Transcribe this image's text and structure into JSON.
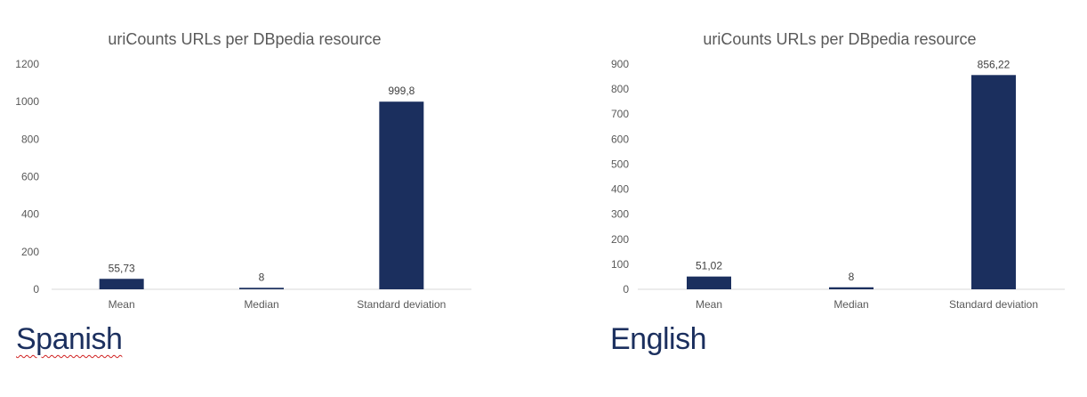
{
  "colors": {
    "bar": "#1b2f5e",
    "axis": "#d9d9d9",
    "text": "#595959"
  },
  "labels": {
    "left": "Spanish",
    "right": "English"
  },
  "chart_data": [
    {
      "type": "bar",
      "title": "uriCounts URLs per DBpedia resource",
      "categories": [
        "Mean",
        "Median",
        "Standard deviation"
      ],
      "values": [
        55.73,
        8,
        999.8
      ],
      "value_labels": [
        "55,73",
        "8",
        "999,8"
      ],
      "ylim": [
        0,
        1200
      ],
      "yticks": [
        0,
        200,
        400,
        600,
        800,
        1000,
        1200
      ],
      "grid": false,
      "legend": "none"
    },
    {
      "type": "bar",
      "title": "uriCounts URLs per DBpedia resource",
      "categories": [
        "Mean",
        "Median",
        "Standard deviation"
      ],
      "values": [
        51.02,
        8,
        856.22
      ],
      "value_labels": [
        "51,02",
        "8",
        "856,22"
      ],
      "ylim": [
        0,
        900
      ],
      "yticks": [
        0,
        100,
        200,
        300,
        400,
        500,
        600,
        700,
        800,
        900
      ],
      "grid": false,
      "legend": "none"
    }
  ]
}
